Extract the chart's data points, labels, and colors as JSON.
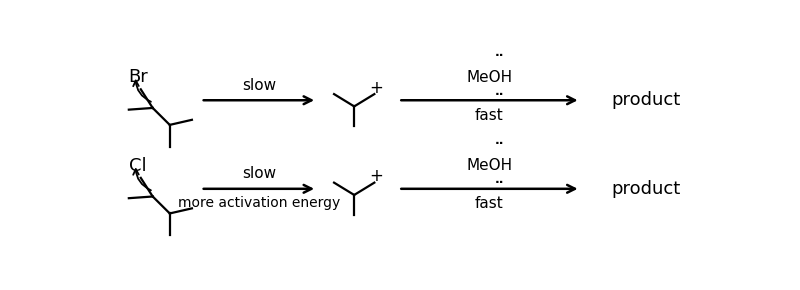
{
  "bg_color": "#ffffff",
  "row1_halogen": "Br",
  "row2_halogen": "Cl",
  "slow_label": "slow",
  "more_activation": "more activation energy",
  "fast_label": "fast",
  "product_label": "product",
  "meoh_label": "MeOH",
  "font_size_label": 11,
  "font_size_halogen": 13,
  "font_size_product": 13,
  "font_size_slow": 11,
  "font_size_more": 10,
  "font_size_dots": 9,
  "lw": 1.6
}
